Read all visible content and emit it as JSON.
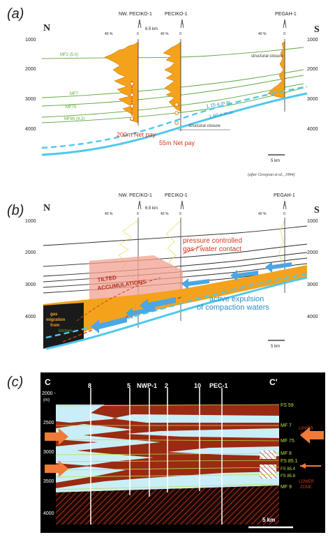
{
  "panel_a": {
    "label": "(a)",
    "north": "N",
    "south": "S",
    "wells": [
      "NW. PECIKO-1",
      "PECIKO-1",
      "PEGAH-1"
    ],
    "spacing": "6.5 km",
    "pct_left": "40 %",
    "pct_zero": "0",
    "depths": [
      "1000",
      "2000",
      "3000",
      "4000"
    ],
    "horizons": [
      "MF2 (5.0)",
      "MF7",
      "MF75",
      "MF85 (9.2)"
    ],
    "closure_top": "structural closure",
    "closure_bottom": "structural closure",
    "emw_1": "1.15 e.m.w.",
    "emw_2": "1.60 e.m.w.",
    "net_pay_1": "200m Net pay",
    "net_pay_2": "55m Net pay",
    "scale": "5 km",
    "citation": "(after Grosjean et al., 1994)"
  },
  "panel_b": {
    "label": "(b)",
    "north": "N",
    "south": "S",
    "wells": [
      "NW. PECIKO-1",
      "PECIKO-1",
      "PEGAH-1"
    ],
    "spacing": "6.5 km",
    "pct_left": "40 %",
    "pct_zero": "0",
    "depths": [
      "1000",
      "2000",
      "3000",
      "4000"
    ],
    "annotation_1": "pressure controlled",
    "annotation_2": "gas / water contact",
    "tilted_1": "TILTED",
    "tilted_2": "ACCUMULATIONS",
    "expulsion_1": "active expulsion",
    "expulsion_2": "of compaction waters",
    "migration_1": "gas",
    "migration_2": "migration",
    "migration_3": "from",
    "kitchen": "kitchen",
    "scale": "5 km"
  },
  "panel_c": {
    "label": "(c)",
    "left_end": "C",
    "right_end": "C'",
    "depth_top": "2000 -",
    "depth_unit": "(m)",
    "depths": [
      "2500",
      "3000",
      "3500",
      "4000"
    ],
    "wells": [
      "8",
      "5",
      "NWP-1",
      "2",
      "10",
      "PEC-1"
    ],
    "horizons": [
      "FS 59",
      "MF 7",
      "MF 75",
      "MF 8",
      "FS 85.1",
      "FS 85.4",
      "FS 85.8",
      "MF 9"
    ],
    "upper_zone_1": "UPPER",
    "upper_zone_2": "ZONE",
    "lower_zone_1": "LOWER",
    "lower_zone_2": "ZONE",
    "scale": "5 km"
  },
  "colors": {
    "orange": "#f4a21c",
    "cyan": "#4fc8ee",
    "green": "#5aa83a",
    "red": "#d23a1c",
    "brown": "#9a2a12",
    "lightblue": "#c9eef8"
  }
}
